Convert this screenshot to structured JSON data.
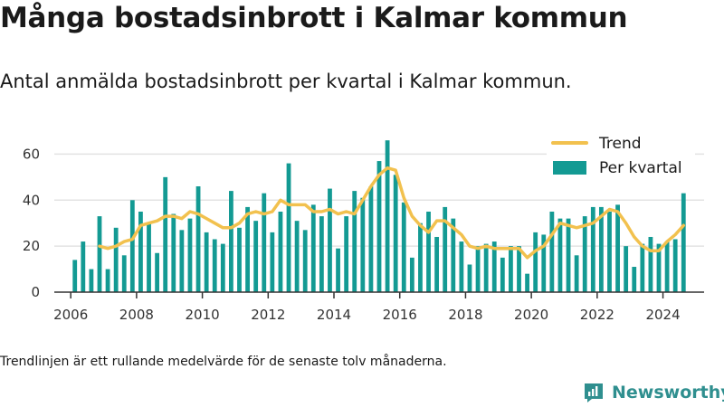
{
  "header": {
    "title": "Många bostadsinbrott i Kalmar kommun",
    "subtitle": "Antal anmälda bostadsinbrott per kvartal i Kalmar kommun."
  },
  "footer": {
    "note": "Trendlinjen är ett rullande medelvärde för de senaste tolv månaderna.",
    "brand": "Newsworthy",
    "brand_icon": "newsworthy-logo-icon"
  },
  "colors": {
    "bars": "#139a93",
    "trend": "#f2c14e",
    "brand": "#2f8f8f",
    "grid": "#e3e3e3",
    "axis": "#333333"
  },
  "chart_data": {
    "type": "bar",
    "title": "Många bostadsinbrott i Kalmar kommun",
    "subtitle": "Antal anmälda bostadsinbrott per kvartal i Kalmar kommun.",
    "ylim": [
      0,
      70
    ],
    "yticks": [
      0,
      20,
      40,
      60
    ],
    "xlim": [
      "2005-07",
      "2025-04"
    ],
    "xticks": [
      "2006",
      "2008",
      "2010",
      "2012",
      "2014",
      "2016",
      "2018",
      "2020",
      "2022",
      "2024"
    ],
    "grid": true,
    "legend": {
      "position": "top-right",
      "entries": [
        "Trend",
        "Per kvartal"
      ]
    },
    "x": [
      "2006-Q1",
      "2006-Q2",
      "2006-Q3",
      "2006-Q4",
      "2007-Q1",
      "2007-Q2",
      "2007-Q3",
      "2007-Q4",
      "2008-Q1",
      "2008-Q2",
      "2008-Q3",
      "2008-Q4",
      "2009-Q1",
      "2009-Q2",
      "2009-Q3",
      "2009-Q4",
      "2010-Q1",
      "2010-Q2",
      "2010-Q3",
      "2010-Q4",
      "2011-Q1",
      "2011-Q2",
      "2011-Q3",
      "2011-Q4",
      "2012-Q1",
      "2012-Q2",
      "2012-Q3",
      "2012-Q4",
      "2013-Q1",
      "2013-Q2",
      "2013-Q3",
      "2013-Q4",
      "2014-Q1",
      "2014-Q2",
      "2014-Q3",
      "2014-Q4",
      "2015-Q1",
      "2015-Q2",
      "2015-Q3",
      "2015-Q4",
      "2016-Q1",
      "2016-Q2",
      "2016-Q3",
      "2016-Q4",
      "2017-Q1",
      "2017-Q2",
      "2017-Q3",
      "2017-Q4",
      "2018-Q1",
      "2018-Q2",
      "2018-Q3",
      "2018-Q4",
      "2019-Q1",
      "2019-Q2",
      "2019-Q3",
      "2019-Q4",
      "2020-Q1",
      "2020-Q2",
      "2020-Q3",
      "2020-Q4",
      "2021-Q1",
      "2021-Q2",
      "2021-Q3",
      "2021-Q4",
      "2022-Q1",
      "2022-Q2",
      "2022-Q3",
      "2022-Q4",
      "2023-Q1",
      "2023-Q2",
      "2023-Q3",
      "2023-Q4",
      "2024-Q1",
      "2024-Q2",
      "2024-Q3"
    ],
    "series": [
      {
        "name": "Per kvartal",
        "type": "bar",
        "values": [
          14,
          22,
          10,
          33,
          10,
          28,
          16,
          40,
          35,
          30,
          17,
          50,
          34,
          27,
          32,
          46,
          26,
          23,
          21,
          44,
          28,
          37,
          31,
          43,
          26,
          35,
          56,
          31,
          27,
          38,
          33,
          45,
          19,
          33,
          44,
          41,
          46,
          57,
          66,
          51,
          39,
          15,
          30,
          35,
          24,
          37,
          32,
          22,
          12,
          20,
          21,
          22,
          15,
          20,
          20,
          8,
          26,
          25,
          35,
          32,
          32,
          16,
          33,
          37,
          37,
          35,
          38,
          20,
          11,
          21,
          24,
          21,
          22,
          23,
          43
        ]
      },
      {
        "name": "Trend",
        "type": "line",
        "x": [
          "2006-Q4",
          "2007-Q1",
          "2007-Q2",
          "2007-Q3",
          "2007-Q4",
          "2008-Q1",
          "2008-Q2",
          "2008-Q3",
          "2008-Q4",
          "2009-Q1",
          "2009-Q2",
          "2009-Q3",
          "2009-Q4",
          "2010-Q1",
          "2010-Q2",
          "2010-Q3",
          "2010-Q4",
          "2011-Q1",
          "2011-Q2",
          "2011-Q3",
          "2011-Q4",
          "2012-Q1",
          "2012-Q2",
          "2012-Q3",
          "2012-Q4",
          "2013-Q1",
          "2013-Q2",
          "2013-Q3",
          "2013-Q4",
          "2014-Q1",
          "2014-Q2",
          "2014-Q3",
          "2014-Q4",
          "2015-Q1",
          "2015-Q2",
          "2015-Q3",
          "2015-Q4",
          "2016-Q1",
          "2016-Q2",
          "2016-Q3",
          "2016-Q4",
          "2017-Q1",
          "2017-Q2",
          "2017-Q3",
          "2017-Q4",
          "2018-Q1",
          "2018-Q2",
          "2018-Q3",
          "2018-Q4",
          "2019-Q1",
          "2019-Q2",
          "2019-Q3",
          "2019-Q4",
          "2020-Q1",
          "2020-Q2",
          "2020-Q3",
          "2020-Q4",
          "2021-Q1",
          "2021-Q2",
          "2021-Q3",
          "2021-Q4",
          "2022-Q1",
          "2022-Q2",
          "2022-Q3",
          "2022-Q4",
          "2023-Q1",
          "2023-Q2",
          "2023-Q3",
          "2023-Q4",
          "2024-Q1",
          "2024-Q2",
          "2024-Q3"
        ],
        "values": [
          20,
          19,
          20,
          22,
          23,
          29,
          30,
          31,
          33,
          33,
          32,
          35,
          34,
          32,
          30,
          28,
          28,
          30,
          34,
          35,
          34,
          35,
          40,
          38,
          38,
          38,
          35,
          35,
          36,
          34,
          35,
          34,
          40,
          46,
          51,
          54,
          53,
          41,
          33,
          29,
          26,
          31,
          31,
          28,
          25,
          20,
          19,
          20,
          19,
          19,
          19,
          19,
          15,
          18,
          20,
          25,
          30,
          29,
          28,
          29,
          30,
          33,
          36,
          35,
          30,
          24,
          20,
          18,
          18,
          22,
          25,
          29
        ]
      }
    ]
  }
}
